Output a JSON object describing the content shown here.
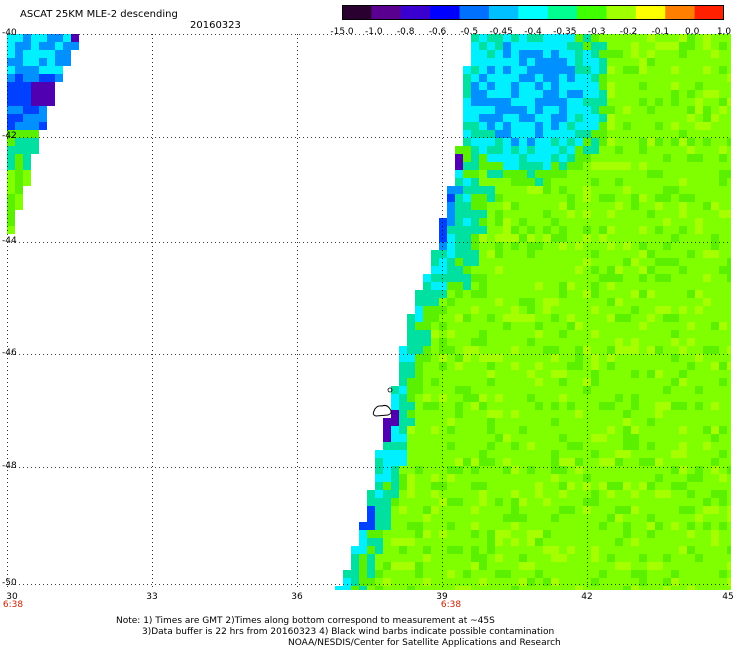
{
  "header": {
    "title": "ASCAT 25KM MLE-2 descending",
    "date": "20160323"
  },
  "colorbar": {
    "labels": [
      "-15.0",
      "-1.0",
      "-0.8",
      "-0.6",
      "-0.5",
      "-0.45",
      "-0.4",
      "-0.35",
      "-0.3",
      "-0.2",
      "-0.1",
      "0.0",
      "1.0"
    ],
    "colors": [
      "#2a0030",
      "#5a0090",
      "#3a00d0",
      "#0000ff",
      "#0070ff",
      "#00c0ff",
      "#00ffff",
      "#00ff90",
      "#40ff00",
      "#a0ff00",
      "#ffff00",
      "#ff8000",
      "#ff2000"
    ]
  },
  "map": {
    "lat_labels": [
      "-40",
      "-42",
      "-44",
      "-46",
      "-48",
      "-50"
    ],
    "lon_labels": [
      "30",
      "33",
      "36",
      "39",
      "42",
      "45"
    ],
    "time_labels": [
      "6:38",
      "6:38"
    ],
    "colors": {
      "green_main": "#7fff00",
      "green_mid": "#5af000",
      "green_light": "#a6ff00",
      "cyan": "#00f0ff",
      "teal": "#00e0a0",
      "blue_light": "#0090ff",
      "blue": "#0040ff",
      "purple": "#5000b0"
    }
  },
  "notes": {
    "line1": "Note: 1) Times are GMT 2)Times along bottom correspond to measurement at ~45S",
    "line2": "3)Data buffer is 22 hrs from 20160323 4) Black wind barbs indicate possible contamination",
    "line3": "NOAA/NESDIS/Center for Satellite Applications and Research"
  }
}
